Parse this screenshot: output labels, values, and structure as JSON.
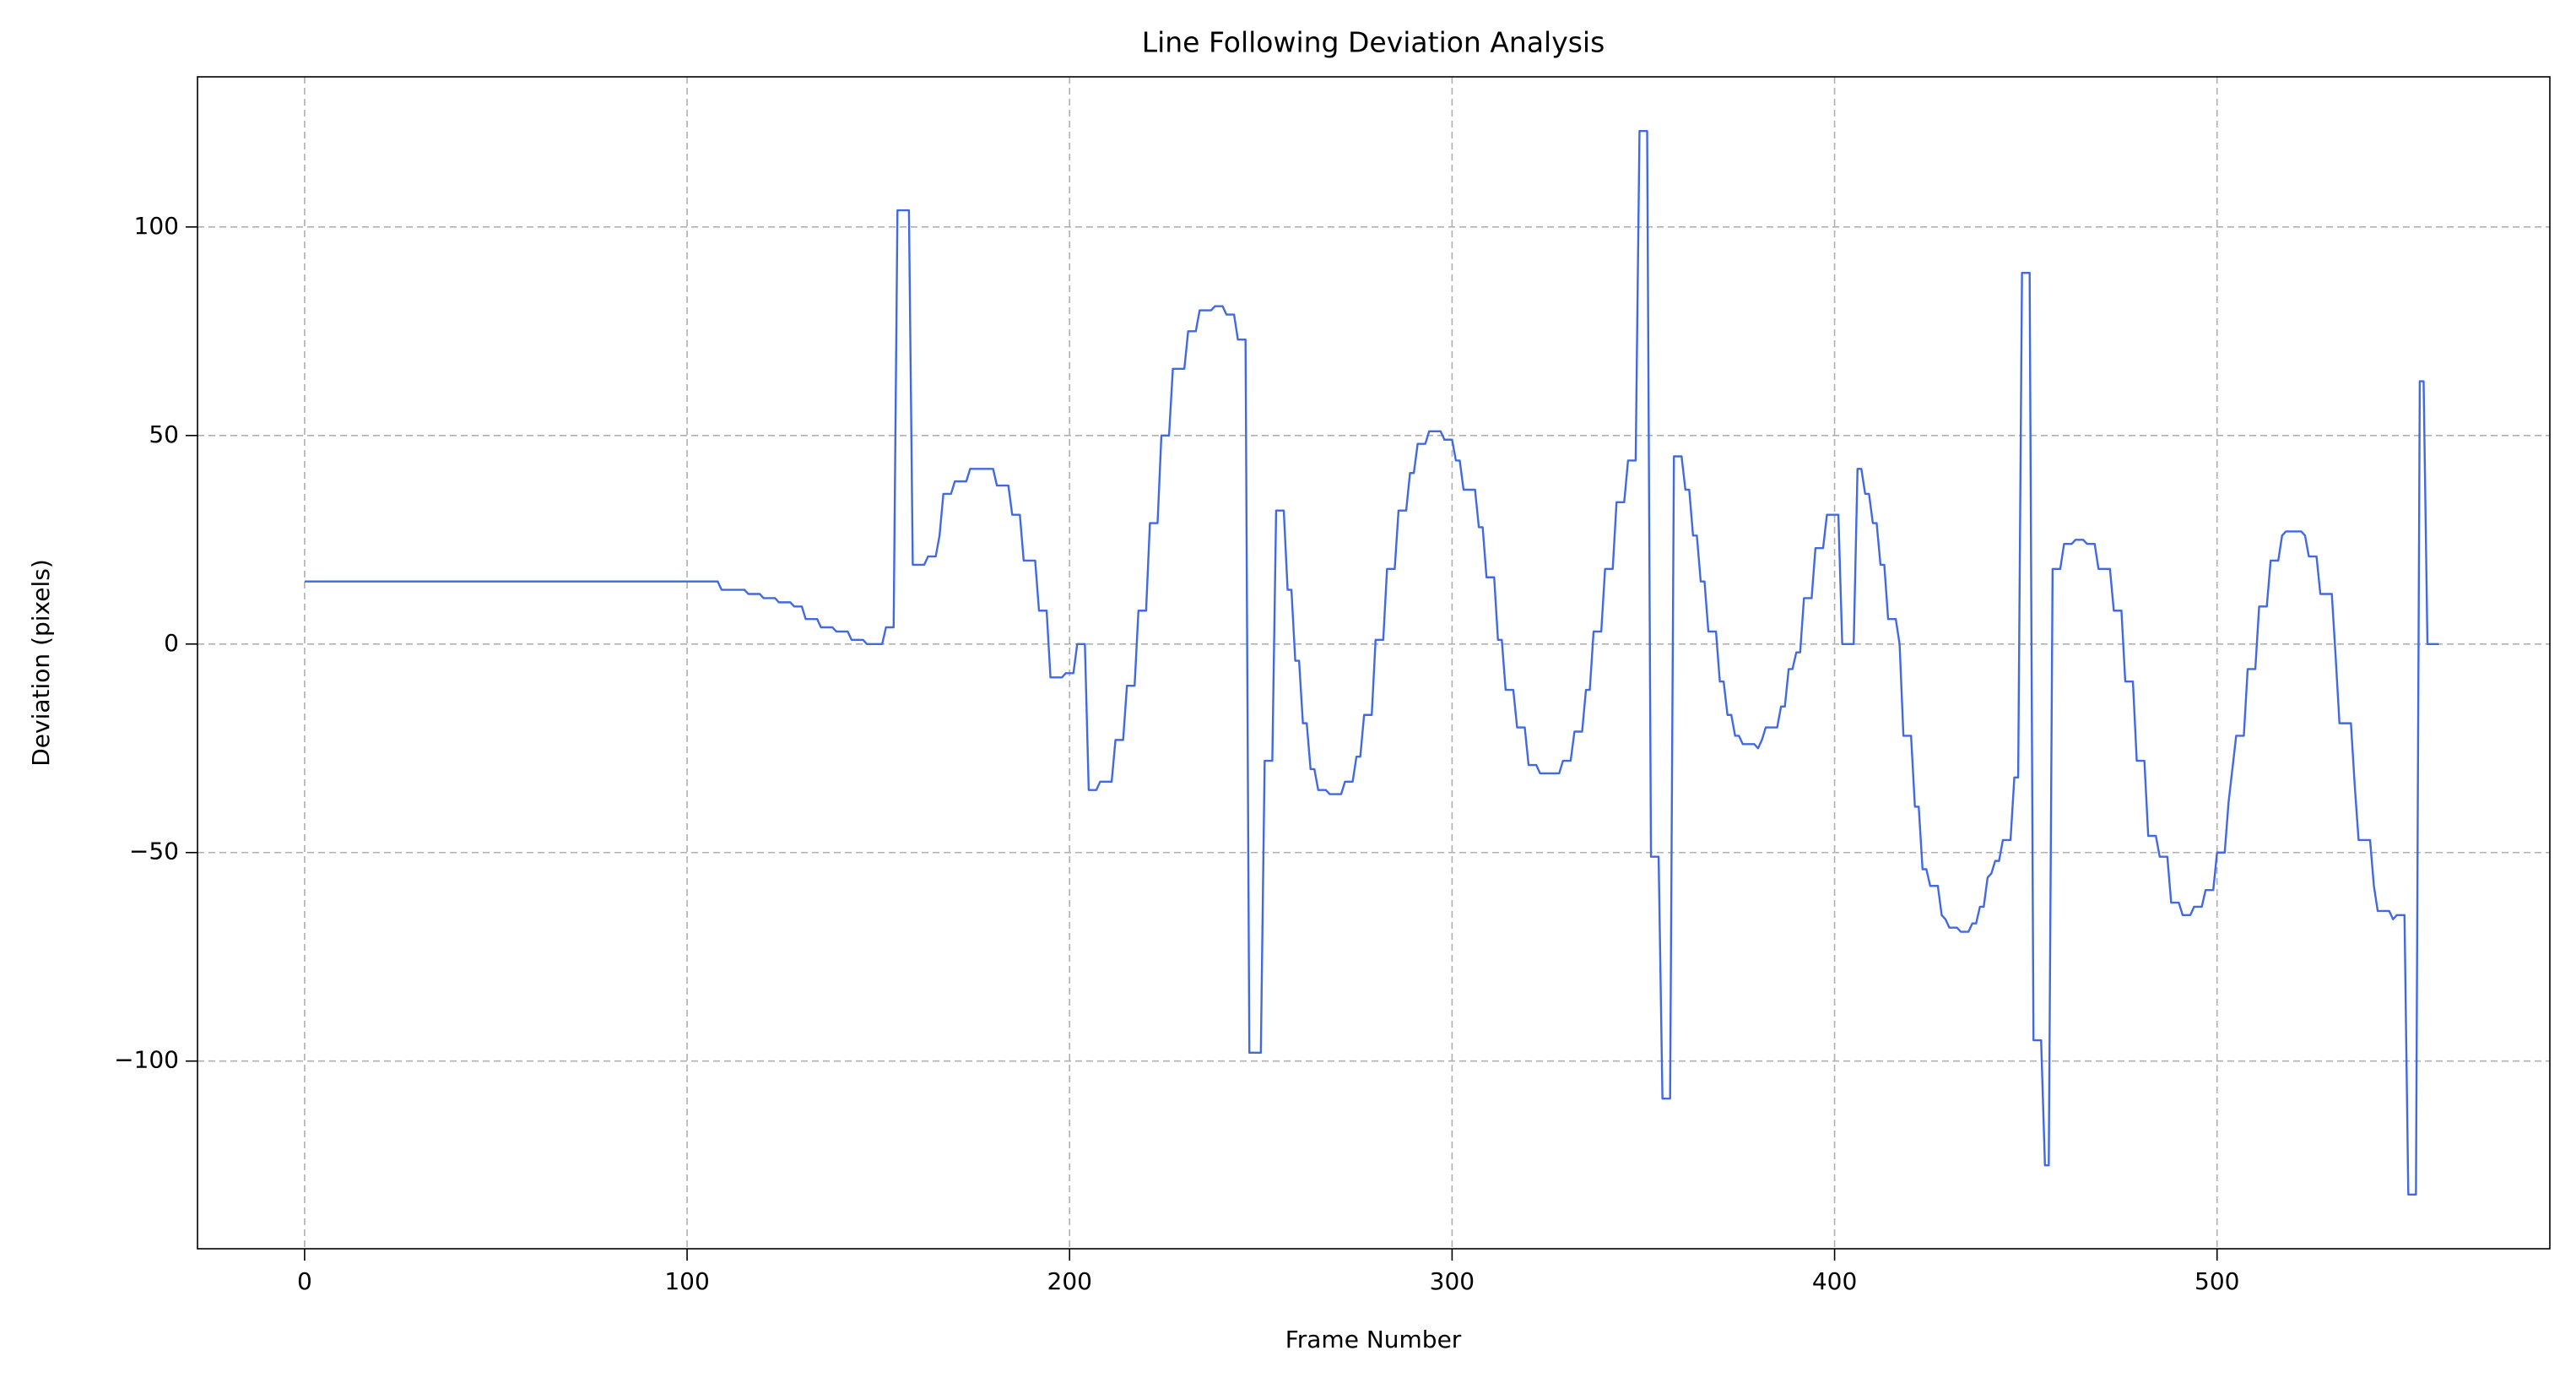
{
  "chart_data": {
    "type": "line",
    "title": "Line Following Deviation Analysis",
    "xlabel": "Frame Number",
    "ylabel": "Deviation (pixels)",
    "x": [
      0,
      108,
      109,
      115,
      116,
      119,
      120,
      123,
      124,
      127,
      128,
      130,
      131,
      134,
      135,
      138,
      139,
      142,
      143,
      146,
      147,
      151,
      152,
      154,
      155,
      158,
      159,
      162,
      163,
      165,
      166,
      167,
      169,
      170,
      173,
      174,
      180,
      181,
      184,
      185,
      187,
      188,
      191,
      192,
      194,
      195,
      198,
      199,
      201,
      202,
      204,
      205,
      207,
      208,
      211,
      212,
      214,
      215,
      217,
      218,
      220,
      221,
      223,
      224,
      226,
      227,
      230,
      231,
      233,
      234,
      237,
      238,
      240,
      241,
      243,
      244,
      246,
      247,
      250,
      251,
      253,
      254,
      256,
      257,
      258,
      259,
      260,
      261,
      262,
      263,
      264,
      265,
      267,
      268,
      271,
      272,
      274,
      275,
      276,
      277,
      279,
      280,
      282,
      283,
      285,
      286,
      288,
      289,
      290,
      291,
      293,
      294,
      297,
      298,
      300,
      301,
      302,
      303,
      306,
      307,
      308,
      309,
      311,
      312,
      313,
      314,
      316,
      317,
      319,
      320,
      322,
      323,
      328,
      329,
      331,
      332,
      334,
      335,
      336,
      337,
      339,
      340,
      342,
      343,
      345,
      346,
      348,
      349,
      351,
      352,
      354,
      355,
      357,
      358,
      360,
      361,
      362,
      363,
      364,
      365,
      366,
      367,
      369,
      370,
      371,
      372,
      373,
      374,
      375,
      376,
      379,
      380,
      381,
      382,
      385,
      386,
      387,
      388,
      389,
      390,
      391,
      392,
      394,
      395,
      397,
      398,
      401,
      402,
      405,
      406,
      407,
      408,
      409,
      410,
      411,
      412,
      413,
      414,
      416,
      417,
      418,
      420,
      421,
      422,
      423,
      424,
      425,
      427,
      428,
      429,
      430,
      432,
      433,
      435,
      436,
      437,
      438,
      439,
      440,
      441,
      442,
      443,
      444,
      446,
      447,
      448,
      449,
      451,
      452,
      454,
      455,
      456,
      457,
      459,
      460,
      462,
      463,
      465,
      466,
      468,
      469,
      472,
      473,
      475,
      476,
      478,
      479,
      481,
      482,
      484,
      485,
      487,
      488,
      490,
      491,
      493,
      494,
      496,
      497,
      499,
      500,
      502,
      503,
      505,
      507,
      508,
      510,
      511,
      513,
      514,
      516,
      517,
      518,
      522,
      523,
      524,
      526,
      527,
      530,
      531,
      532,
      535,
      536,
      537,
      540,
      541,
      542,
      545,
      546,
      547,
      549,
      550,
      552,
      553,
      554,
      555,
      558
    ],
    "values": [
      15,
      15,
      13,
      13,
      12,
      12,
      11,
      11,
      10,
      10,
      9,
      9,
      6,
      6,
      4,
      4,
      3,
      3,
      1,
      1,
      0,
      0,
      4,
      4,
      104,
      104,
      19,
      19,
      21,
      21,
      26,
      36,
      36,
      39,
      39,
      42,
      42,
      38,
      38,
      31,
      31,
      20,
      20,
      8,
      8,
      -8,
      -8,
      -7,
      -7,
      0,
      0,
      -35,
      -35,
      -33,
      -33,
      -23,
      -23,
      -10,
      -10,
      8,
      8,
      29,
      29,
      50,
      50,
      66,
      66,
      75,
      75,
      80,
      80,
      81,
      81,
      79,
      79,
      73,
      73,
      -98,
      -98,
      -28,
      -28,
      32,
      32,
      13,
      13,
      -4,
      -4,
      -19,
      -19,
      -30,
      -30,
      -35,
      -35,
      -36,
      -36,
      -33,
      -33,
      -27,
      -27,
      -17,
      -17,
      1,
      1,
      18,
      18,
      32,
      32,
      41,
      41,
      48,
      48,
      51,
      51,
      49,
      49,
      44,
      44,
      37,
      37,
      28,
      28,
      16,
      16,
      1,
      1,
      -11,
      -11,
      -20,
      -20,
      -29,
      -29,
      -31,
      -31,
      -28,
      -28,
      -21,
      -21,
      -11,
      -11,
      3,
      3,
      18,
      18,
      34,
      34,
      44,
      44,
      123,
      123,
      -51,
      -51,
      -109,
      -109,
      45,
      45,
      37,
      37,
      26,
      26,
      15,
      15,
      3,
      3,
      -9,
      -9,
      -17,
      -17,
      -22,
      -22,
      -24,
      -24,
      -25,
      -23,
      -20,
      -20,
      -15,
      -15,
      -6,
      -6,
      -2,
      -2,
      11,
      11,
      23,
      23,
      31,
      31,
      0,
      0,
      42,
      42,
      36,
      36,
      29,
      29,
      19,
      19,
      6,
      6,
      0,
      -22,
      -22,
      -39,
      -39,
      -54,
      -54,
      -58,
      -58,
      -65,
      -66,
      -68,
      -68,
      -69,
      -69,
      -67,
      -67,
      -63,
      -63,
      -56,
      -55,
      -52,
      -52,
      -47,
      -47,
      -32,
      -32,
      89,
      89,
      -95,
      -95,
      -125,
      -125,
      18,
      18,
      24,
      24,
      25,
      25,
      24,
      24,
      18,
      18,
      8,
      8,
      -9,
      -9,
      -28,
      -28,
      -46,
      -46,
      -51,
      -51,
      -62,
      -62,
      -65,
      -65,
      -63,
      -63,
      -59,
      -59,
      -50,
      -50,
      -38,
      -22,
      -22,
      -6,
      -6,
      9,
      9,
      20,
      20,
      26,
      27,
      27,
      26,
      21,
      21,
      12,
      12,
      -3,
      -19,
      -19,
      -34,
      -47,
      -47,
      -58,
      -64,
      -64,
      -66,
      -65,
      -65,
      -132,
      -132,
      63,
      63,
      0,
      0
    ],
    "color": "#4169e1",
    "xlim": [
      -28,
      587
    ],
    "ylim": [
      -145,
      136
    ],
    "xticks": [
      0,
      100,
      200,
      300,
      400,
      500
    ],
    "yticks": [
      {
        "value": -100,
        "label": "−100"
      },
      {
        "value": -50,
        "label": "−50"
      },
      0,
      50,
      100
    ],
    "grid": true
  }
}
